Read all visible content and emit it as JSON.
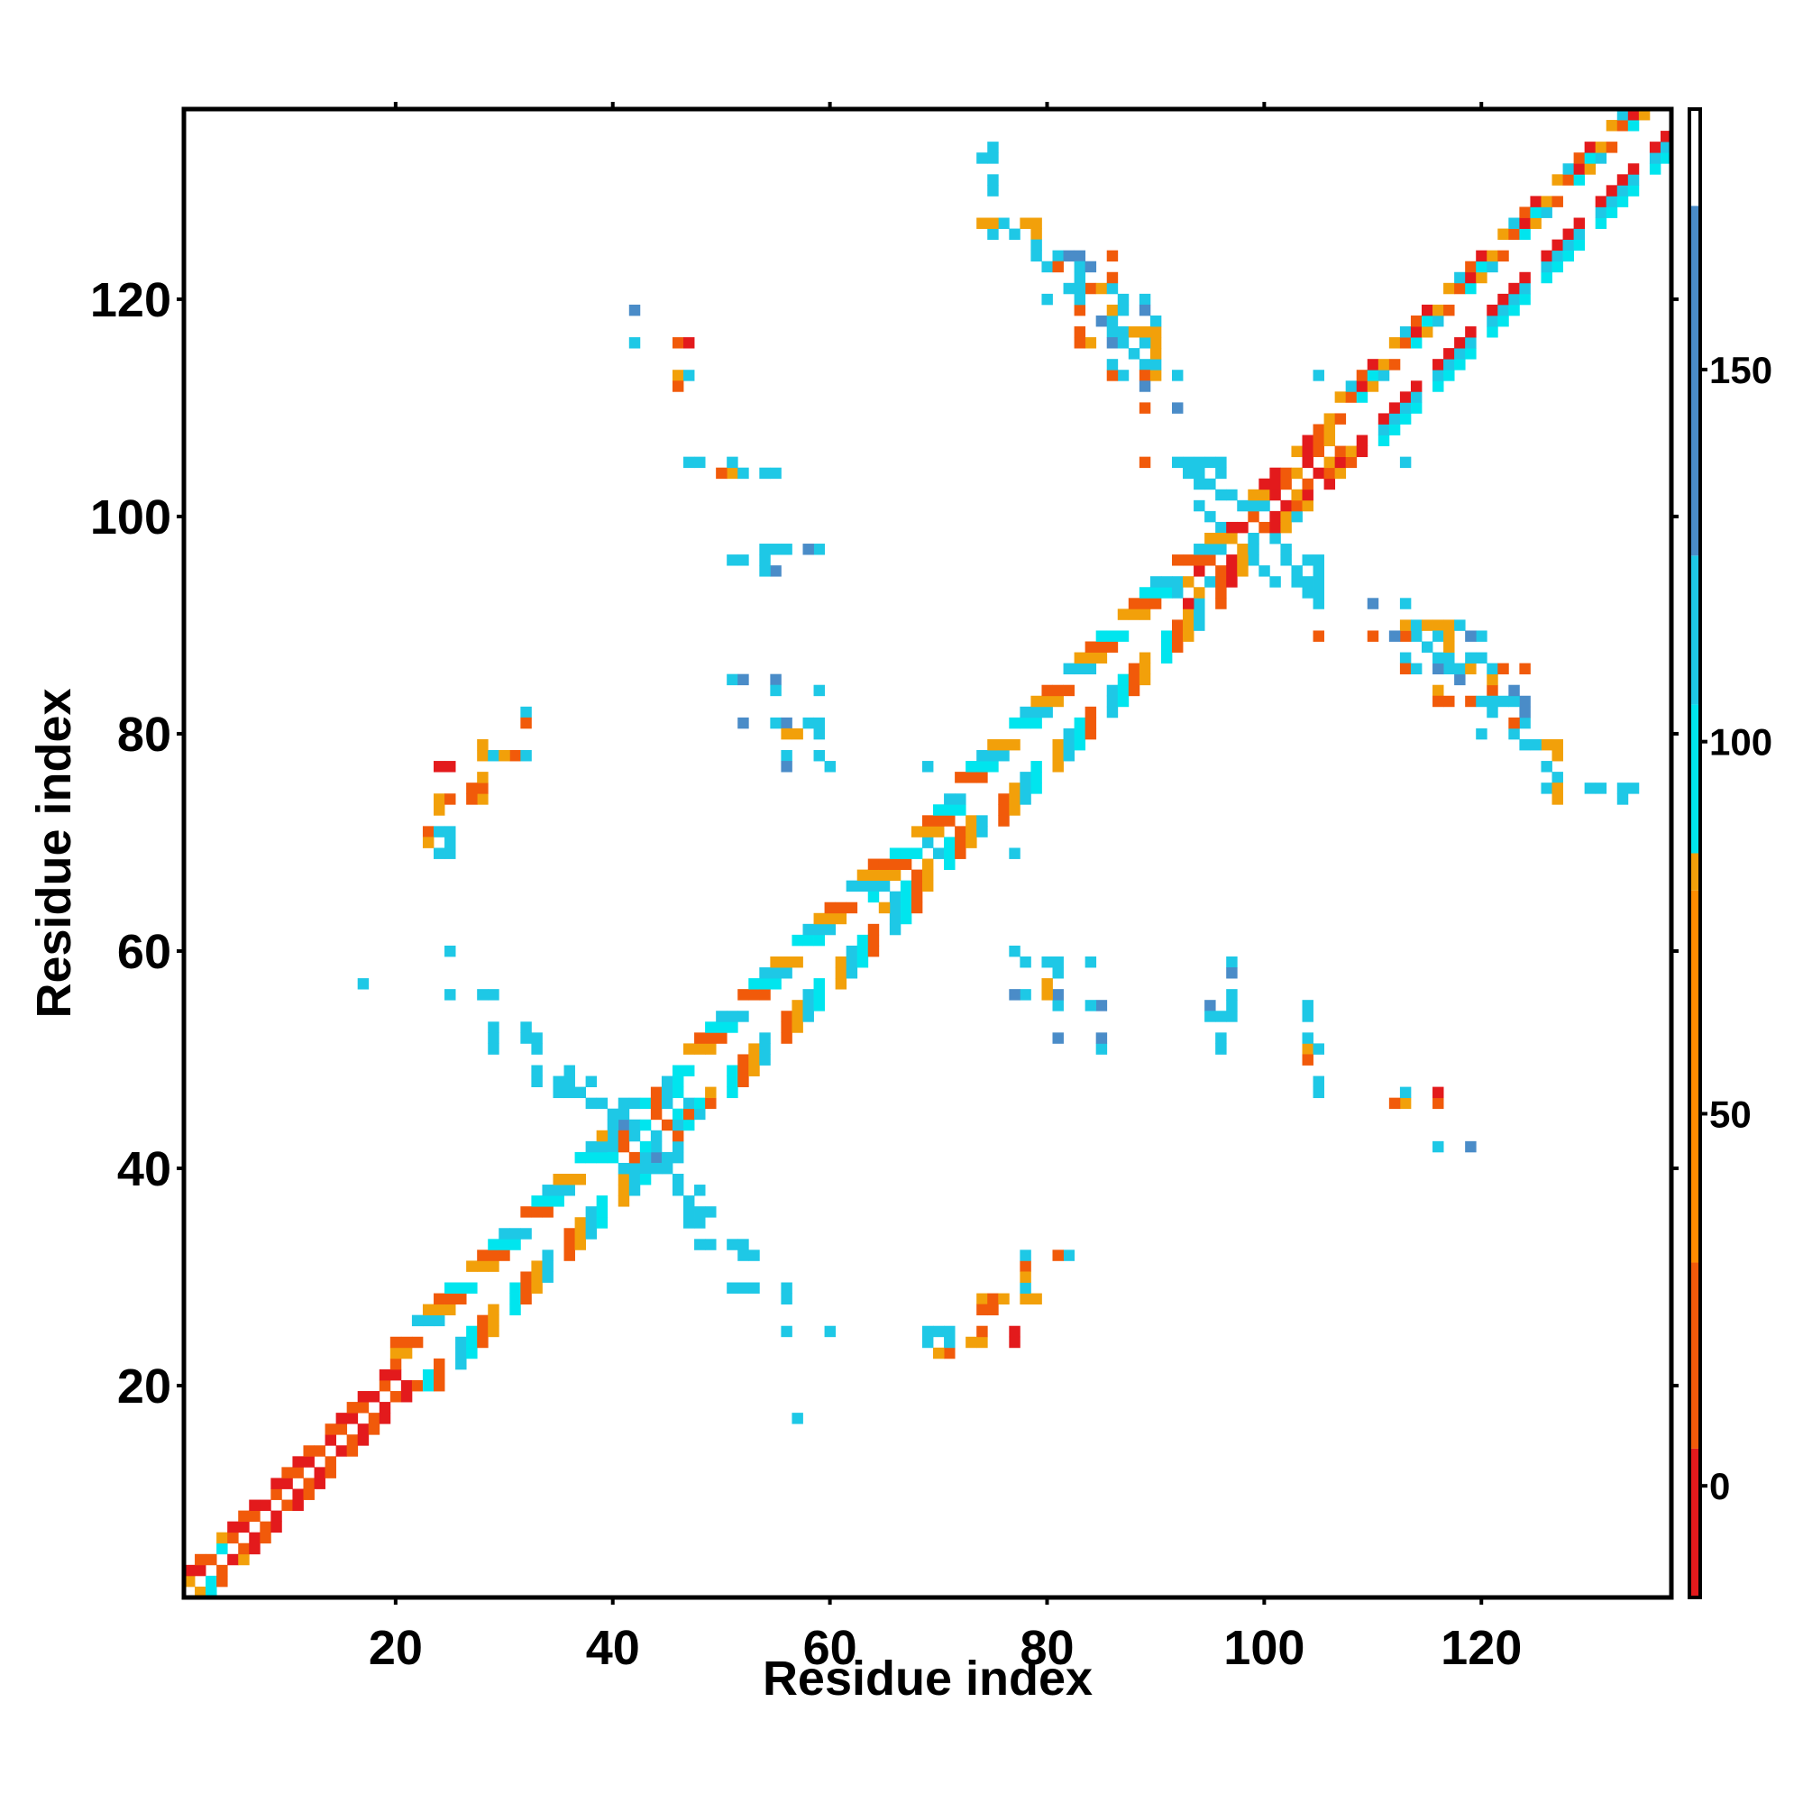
{
  "chart_data": {
    "type": "heatmap",
    "title": "",
    "xlabel": "Residue index",
    "ylabel": "Residue index",
    "xlim": [
      0.5,
      137.5
    ],
    "ylim": [
      0.5,
      137.5
    ],
    "x_ticks": [
      20,
      40,
      60,
      80,
      100,
      120
    ],
    "y_ticks": [
      20,
      40,
      60,
      80,
      100,
      120
    ],
    "colorbar": {
      "range": [
        -15,
        185
      ],
      "ticks": [
        0,
        50,
        100,
        150
      ],
      "bands": [
        {
          "from": -15,
          "to": 5,
          "color": "#e31a1c"
        },
        {
          "from": 5,
          "to": 30,
          "color": "#f15a0a"
        },
        {
          "from": 30,
          "to": 80,
          "color": "#ff8c00"
        },
        {
          "from": 80,
          "to": 85,
          "color": "#f2a00a"
        },
        {
          "from": 85,
          "to": 105,
          "color": "#00e5ee"
        },
        {
          "from": 105,
          "to": 125,
          "color": "#1ec8e6"
        },
        {
          "from": 125,
          "to": 172,
          "color": "#4a8cc8"
        },
        {
          "from": 172,
          "to": 185,
          "color": "#ffffff"
        }
      ]
    },
    "palette": {
      "R": "#e31a1c",
      "O": "#f15a0a",
      "Y": "#f2a00a",
      "C": "#1ec8e6",
      "A": "#00e5ee",
      "B": "#4a8cc8"
    },
    "cells": {
      "note_codes": "R=~0, O=~20, Y=~60, C=~110, A=~95, B=~150",
      "diagonal_band": [
        [
          1,
          4,
          2,
          1,
          "ORYA"
        ],
        [
          4,
          20,
          2,
          1,
          "OR"
        ],
        [
          20,
          40,
          4,
          2,
          "OYCA"
        ],
        [
          40,
          46,
          3,
          1,
          "CAO"
        ],
        [
          46,
          64,
          4,
          2,
          "OYCA"
        ],
        [
          64,
          72,
          3,
          1,
          "OYCA"
        ],
        [
          72,
          92,
          4,
          2,
          "OYCA"
        ],
        [
          92,
          100,
          3,
          1,
          "ORYC"
        ],
        [
          100,
          106,
          3,
          1,
          "OYR"
        ],
        [
          106,
          136,
          4,
          2,
          "OYRCA"
        ]
      ],
      "points": [
        [
          75,
          134,
          "C"
        ],
        [
          74,
          133,
          "C"
        ],
        [
          75,
          131,
          "C"
        ],
        [
          75,
          130,
          "C"
        ],
        [
          74,
          127,
          "Y"
        ],
        [
          75,
          126,
          "C"
        ],
        [
          78,
          127,
          "Y"
        ],
        [
          79,
          126,
          "Y"
        ],
        [
          79,
          124,
          "C"
        ],
        [
          80,
          123,
          "C"
        ],
        [
          81,
          124,
          "C"
        ],
        [
          82,
          124,
          "B"
        ],
        [
          83,
          124,
          "B"
        ],
        [
          86,
          124,
          "O"
        ],
        [
          82,
          121,
          "C"
        ],
        [
          83,
          122,
          "C"
        ],
        [
          84,
          121,
          "O"
        ],
        [
          85,
          121,
          "Y"
        ],
        [
          86,
          121,
          "C"
        ],
        [
          87,
          120,
          "C"
        ],
        [
          89,
          120,
          "C"
        ],
        [
          85,
          118,
          "B"
        ],
        [
          83,
          117,
          "O"
        ],
        [
          86,
          117,
          "C"
        ],
        [
          87,
          117,
          "C"
        ],
        [
          88,
          117,
          "Y"
        ],
        [
          90,
          117,
          "Y"
        ],
        [
          90,
          118,
          "C"
        ],
        [
          86,
          116,
          "B"
        ],
        [
          88,
          115,
          "C"
        ],
        [
          89,
          114,
          "C"
        ],
        [
          89,
          113,
          "O"
        ],
        [
          87,
          113,
          "C"
        ],
        [
          90,
          113,
          "Y"
        ],
        [
          92,
          113,
          "C"
        ],
        [
          89,
          110,
          "O"
        ],
        [
          92,
          110,
          "B"
        ],
        [
          89,
          105,
          "O"
        ],
        [
          42,
          119,
          "B"
        ],
        [
          42,
          116,
          "C"
        ],
        [
          46,
          116,
          "O"
        ],
        [
          47,
          116,
          "R"
        ],
        [
          46,
          113,
          "Y"
        ],
        [
          47,
          113,
          "C"
        ],
        [
          46,
          112,
          "O"
        ],
        [
          48,
          105,
          "C"
        ],
        [
          51,
          104,
          "Y"
        ],
        [
          52,
          104,
          "C"
        ],
        [
          55,
          104,
          "C"
        ],
        [
          55,
          97,
          "C"
        ],
        [
          56,
          97,
          "C"
        ],
        [
          55,
          95,
          "B"
        ],
        [
          52,
          96,
          "C"
        ],
        [
          59,
          97,
          "C"
        ],
        [
          51,
          85,
          "C"
        ],
        [
          52,
          85,
          "B"
        ],
        [
          55,
          85,
          "B"
        ],
        [
          55,
          84,
          "C"
        ],
        [
          59,
          84,
          "C"
        ],
        [
          52,
          81,
          "B"
        ],
        [
          55,
          81,
          "C"
        ],
        [
          56,
          81,
          "B"
        ],
        [
          57,
          80,
          "Y"
        ],
        [
          58,
          81,
          "C"
        ],
        [
          59,
          81,
          "C"
        ],
        [
          59,
          80,
          "C"
        ],
        [
          56,
          78,
          "C"
        ],
        [
          56,
          77,
          "B"
        ],
        [
          59,
          78,
          "C"
        ],
        [
          60,
          77,
          "C"
        ],
        [
          32,
          82,
          "C"
        ],
        [
          32,
          81,
          "O"
        ],
        [
          24,
          77,
          "R"
        ],
        [
          28,
          78,
          "Y"
        ],
        [
          29,
          78,
          "C"
        ],
        [
          31,
          78,
          "O"
        ],
        [
          32,
          78,
          "C"
        ],
        [
          24,
          74,
          "Y"
        ],
        [
          25,
          74,
          "O"
        ],
        [
          24,
          73,
          "Y"
        ],
        [
          28,
          74,
          "Y"
        ],
        [
          27,
          74,
          "O"
        ],
        [
          23,
          71,
          "O"
        ],
        [
          24,
          71,
          "C"
        ],
        [
          25,
          71,
          "C"
        ],
        [
          23,
          70,
          "Y"
        ],
        [
          24,
          69,
          "C"
        ],
        [
          25,
          69,
          "C"
        ],
        [
          25,
          60,
          "C"
        ],
        [
          17,
          57,
          "C"
        ],
        [
          25,
          56,
          "C"
        ],
        [
          28,
          56,
          "C"
        ],
        [
          29,
          56,
          "C"
        ],
        [
          29,
          53,
          "C"
        ],
        [
          32,
          53,
          "C"
        ],
        [
          29,
          52,
          "C"
        ],
        [
          33,
          52,
          "C"
        ],
        [
          35,
          48,
          "C"
        ],
        [
          35,
          47,
          "C"
        ],
        [
          38,
          48,
          "C"
        ],
        [
          38,
          46,
          "C"
        ],
        [
          39,
          46,
          "C"
        ],
        [
          47,
          37,
          "C"
        ],
        [
          47,
          36,
          "C"
        ],
        [
          48,
          36,
          "C"
        ],
        [
          49,
          36,
          "C"
        ],
        [
          48,
          33,
          "C"
        ],
        [
          49,
          33,
          "C"
        ],
        [
          51,
          33,
          "C"
        ],
        [
          52,
          32,
          "C"
        ],
        [
          51,
          29,
          "C"
        ],
        [
          52,
          29,
          "C"
        ],
        [
          56,
          29,
          "C"
        ],
        [
          56,
          28,
          "C"
        ],
        [
          56,
          25,
          "C"
        ],
        [
          60,
          25,
          "C"
        ],
        [
          57,
          17,
          "C"
        ],
        [
          78,
          32,
          "C"
        ],
        [
          81,
          32,
          "O"
        ],
        [
          82,
          32,
          "C"
        ],
        [
          78,
          30,
          "Y"
        ],
        [
          78,
          28,
          "Y"
        ],
        [
          79,
          28,
          "Y"
        ],
        [
          75,
          28,
          "O"
        ],
        [
          76,
          28,
          "Y"
        ],
        [
          75,
          27,
          "O"
        ],
        [
          77,
          25,
          "R"
        ],
        [
          74,
          25,
          "O"
        ],
        [
          73,
          24,
          "O"
        ],
        [
          74,
          24,
          "O"
        ],
        [
          69,
          25,
          "C"
        ],
        [
          70,
          25,
          "C"
        ],
        [
          71,
          25,
          "C"
        ],
        [
          69,
          24,
          "C"
        ],
        [
          71,
          24,
          "C"
        ],
        [
          71,
          23,
          "R"
        ],
        [
          70,
          23,
          "O"
        ],
        [
          77,
          60,
          "C"
        ],
        [
          78,
          59,
          "C"
        ],
        [
          80,
          59,
          "C"
        ],
        [
          81,
          59,
          "C"
        ],
        [
          84,
          59,
          "B"
        ],
        [
          81,
          58,
          "C"
        ],
        [
          77,
          56,
          "B"
        ],
        [
          78,
          56,
          "C"
        ],
        [
          80,
          56,
          "Y"
        ],
        [
          81,
          55,
          "C"
        ],
        [
          84,
          55,
          "B"
        ],
        [
          85,
          55,
          "B"
        ],
        [
          81,
          52,
          "B"
        ],
        [
          85,
          52,
          "B"
        ],
        [
          85,
          51,
          "B"
        ],
        [
          97,
          58,
          "B"
        ],
        [
          97,
          56,
          "C"
        ],
        [
          95,
          54,
          "C"
        ],
        [
          96,
          54,
          "C"
        ],
        [
          97,
          54,
          "C"
        ],
        [
          96,
          51,
          "C"
        ],
        [
          104,
          54,
          "C"
        ],
        [
          104,
          51,
          "Y"
        ],
        [
          105,
          51,
          "C"
        ],
        [
          104,
          50,
          "O"
        ],
        [
          105,
          47,
          "C"
        ],
        [
          112,
          46,
          "O"
        ],
        [
          113,
          47,
          "C"
        ],
        [
          113,
          46,
          "Y"
        ],
        [
          116,
          47,
          "R"
        ],
        [
          116,
          46,
          "R"
        ],
        [
          116,
          42,
          "C"
        ],
        [
          119,
          42,
          "B"
        ],
        [
          105,
          89,
          "O"
        ],
        [
          110,
          92,
          "B"
        ],
        [
          113,
          92,
          "B"
        ],
        [
          110,
          89,
          "O"
        ],
        [
          112,
          89,
          "B"
        ],
        [
          113,
          90,
          "C"
        ],
        [
          114,
          90,
          "C"
        ],
        [
          115,
          90,
          "Y"
        ],
        [
          116,
          90,
          "Y"
        ],
        [
          113,
          89,
          "C"
        ],
        [
          114,
          89,
          "C"
        ],
        [
          116,
          89,
          "C"
        ],
        [
          117,
          89,
          "Y"
        ],
        [
          119,
          89,
          "B"
        ],
        [
          113,
          86,
          "O"
        ],
        [
          114,
          86,
          "C"
        ],
        [
          116,
          86,
          "C"
        ],
        [
          116,
          87,
          "C"
        ],
        [
          117,
          86,
          "C"
        ],
        [
          118,
          86,
          "C"
        ],
        [
          119,
          86,
          "Y"
        ],
        [
          119,
          87,
          "C"
        ],
        [
          122,
          86,
          "O"
        ],
        [
          116,
          84,
          "Y"
        ],
        [
          116,
          83,
          "O"
        ],
        [
          119,
          83,
          "O"
        ],
        [
          120,
          83,
          "C"
        ],
        [
          121,
          83,
          "C"
        ],
        [
          122,
          83,
          "Y"
        ],
        [
          123,
          83,
          "C"
        ],
        [
          123,
          84,
          "B"
        ],
        [
          120,
          80,
          "C"
        ],
        [
          123,
          80,
          "C"
        ],
        [
          123,
          81,
          "O"
        ],
        [
          125,
          79,
          "C"
        ],
        [
          126,
          79,
          "Y"
        ],
        [
          127,
          79,
          "Y"
        ],
        [
          126,
          77,
          "C"
        ],
        [
          127,
          76,
          "C"
        ],
        [
          127,
          75,
          "Y"
        ],
        [
          130,
          75,
          "C"
        ],
        [
          131,
          75,
          "C"
        ],
        [
          133,
          75,
          "C"
        ],
        [
          134,
          75,
          "C"
        ],
        [
          133,
          74,
          "C"
        ],
        [
          92,
          105,
          "C"
        ],
        [
          93,
          104,
          "C"
        ],
        [
          94,
          105,
          "C"
        ],
        [
          95,
          103,
          "C"
        ],
        [
          94,
          101,
          "C"
        ],
        [
          95,
          100,
          "C"
        ],
        [
          97,
          102,
          "C"
        ],
        [
          96,
          99,
          "C"
        ],
        [
          101,
          98,
          "C"
        ],
        [
          102,
          97,
          "C"
        ],
        [
          102,
          96,
          "C"
        ],
        [
          103,
          95,
          "C"
        ],
        [
          104,
          94,
          "C"
        ],
        [
          104,
          93,
          "C"
        ],
        [
          105,
          93,
          "C"
        ],
        [
          104,
          96,
          "C"
        ],
        [
          105,
          96,
          "C"
        ],
        [
          105,
          95,
          "C"
        ],
        [
          103,
          94,
          "C"
        ],
        [
          41,
          44,
          "B"
        ],
        [
          40,
          43,
          "C"
        ],
        [
          42,
          44,
          "C"
        ],
        [
          45,
          41,
          "C"
        ],
        [
          46,
          41,
          "C"
        ],
        [
          44,
          40,
          "C"
        ],
        [
          45,
          40,
          "C"
        ],
        [
          44,
          42,
          "C"
        ],
        [
          105,
          113,
          "C"
        ],
        [
          113,
          105,
          "C"
        ],
        [
          69,
          77,
          "C"
        ],
        [
          77,
          69,
          "C"
        ],
        [
          42,
          46,
          "C"
        ],
        [
          46,
          42,
          "C"
        ]
      ]
    }
  }
}
